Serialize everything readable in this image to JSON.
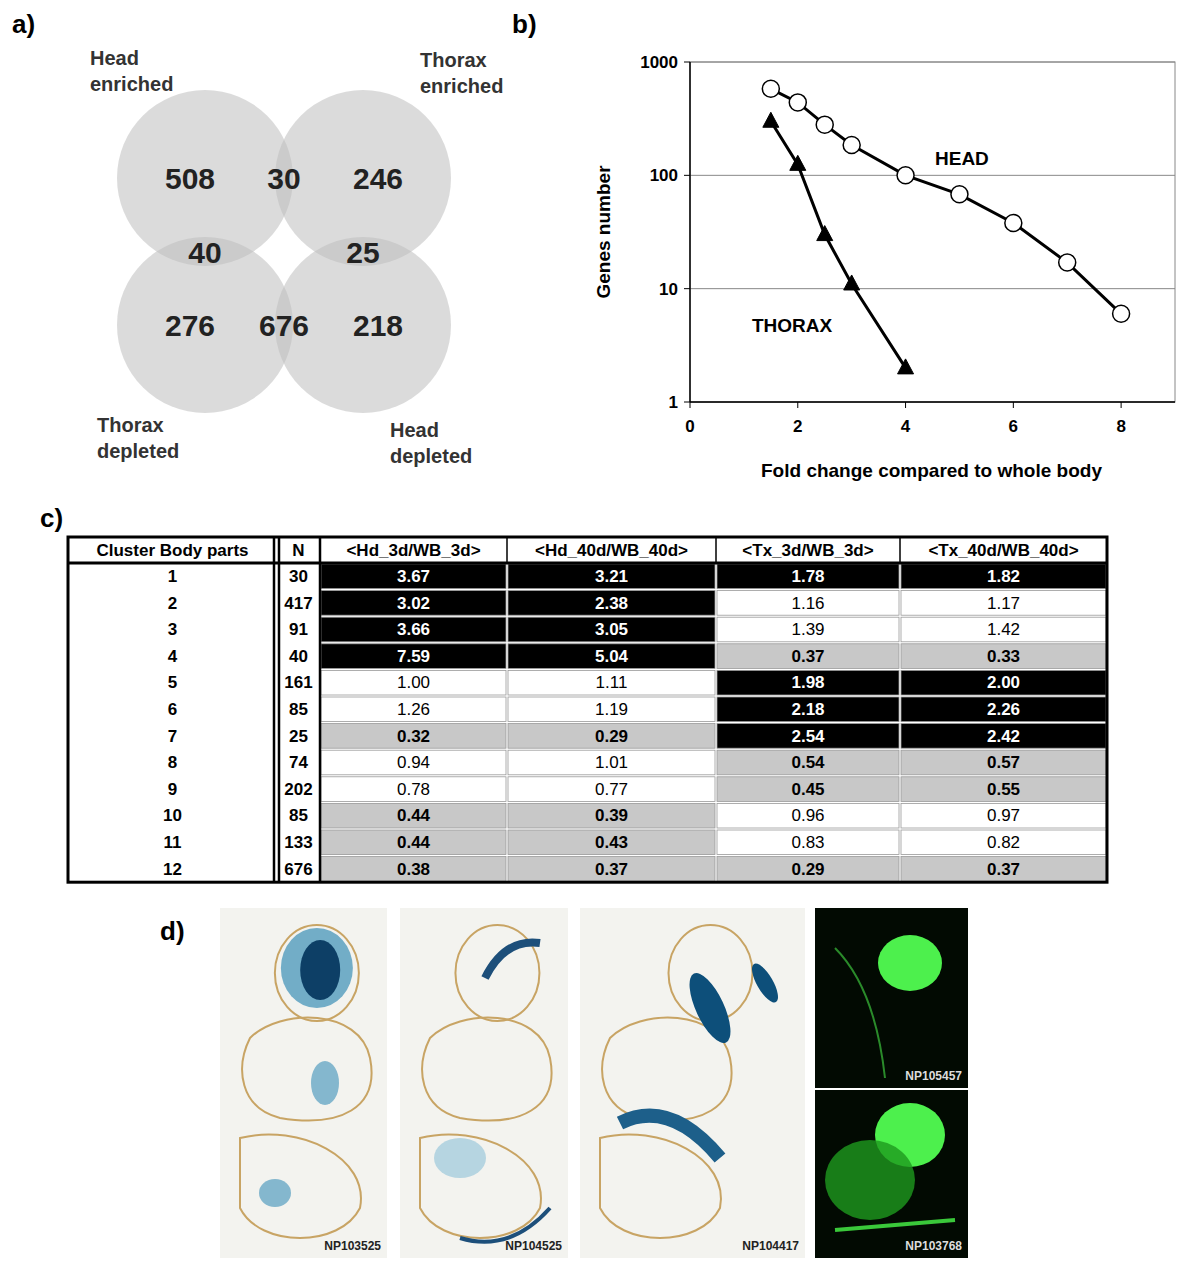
{
  "panel_labels": [
    "a)",
    "b)",
    "c)",
    "d)"
  ],
  "venn": {
    "sets": [
      {
        "label": [
          "Head",
          "enriched"
        ]
      },
      {
        "label": [
          "Thorax",
          "enriched"
        ]
      },
      {
        "label": [
          "Thorax",
          "depleted"
        ]
      },
      {
        "label": [
          "Head",
          "depleted"
        ]
      }
    ],
    "regions": [
      {
        "sets": [
          0
        ],
        "value": 508
      },
      {
        "sets": [
          0,
          1
        ],
        "value": 30
      },
      {
        "sets": [
          1
        ],
        "value": 246
      },
      {
        "sets": [
          0,
          2
        ],
        "value": 40
      },
      {
        "sets": [
          1,
          3
        ],
        "value": 25
      },
      {
        "sets": [
          2
        ],
        "value": 276
      },
      {
        "sets": [
          2,
          3
        ],
        "value": 676
      },
      {
        "sets": [
          3
        ],
        "value": 218
      }
    ]
  },
  "chart_data": {
    "type": "line",
    "x_label": "Fold change compared to whole body",
    "y_label": "Genes number",
    "log": "y",
    "grid": true,
    "xlim": [
      0,
      9
    ],
    "ylim": [
      1,
      1000
    ],
    "xticks": [
      0,
      2,
      4,
      6,
      8
    ],
    "yticks": [
      1,
      10,
      100,
      1000
    ],
    "series": [
      {
        "name": "HEAD",
        "color": "#000000",
        "marker": "circle",
        "x": [
          1.5,
          2,
          2.5,
          3,
          4,
          5,
          6,
          7,
          8
        ],
        "values": [
          580,
          440,
          280,
          185,
          100,
          68,
          38,
          17,
          6
        ]
      },
      {
        "name": "THORAX",
        "color": "#000000",
        "marker": "triangle",
        "x": [
          1.5,
          2,
          2.5,
          3,
          4
        ],
        "values": [
          300,
          125,
          30,
          11,
          2
        ]
      }
    ]
  },
  "table": {
    "header": [
      "Cluster Body parts",
      "N",
      "<Hd_3d/WB_3d>",
      "<Hd_40d/WB_40d>",
      "<Tx_3d/WB_3d>",
      "<Tx_40d/WB_40d>"
    ],
    "rows": [
      {
        "cells": [
          "1",
          "30",
          "3.67",
          "3.21",
          "1.78",
          "1.82"
        ],
        "colors": [
          "#000000",
          "#000000",
          "#000000",
          "#000000"
        ]
      },
      {
        "cells": [
          "2",
          "417",
          "3.02",
          "2.38",
          "1.16",
          "1.17"
        ],
        "colors": [
          "#000000",
          "#000000",
          "#ffffff",
          "#ffffff"
        ]
      },
      {
        "cells": [
          "3",
          "91",
          "3.66",
          "3.05",
          "1.39",
          "1.42"
        ],
        "colors": [
          "#000000",
          "#000000",
          "#ffffff",
          "#ffffff"
        ]
      },
      {
        "cells": [
          "4",
          "40",
          "7.59",
          "5.04",
          "0.37",
          "0.33"
        ],
        "colors": [
          "#000000",
          "#000000",
          "#c8c8c8",
          "#c8c8c8"
        ]
      },
      {
        "cells": [
          "5",
          "161",
          "1.00",
          "1.11",
          "1.98",
          "2.00"
        ],
        "colors": [
          "#ffffff",
          "#ffffff",
          "#000000",
          "#000000"
        ]
      },
      {
        "cells": [
          "6",
          "85",
          "1.26",
          "1.19",
          "2.18",
          "2.26"
        ],
        "colors": [
          "#ffffff",
          "#ffffff",
          "#000000",
          "#000000"
        ]
      },
      {
        "cells": [
          "7",
          "25",
          "0.32",
          "0.29",
          "2.54",
          "2.42"
        ],
        "colors": [
          "#c8c8c8",
          "#c8c8c8",
          "#000000",
          "#000000"
        ]
      },
      {
        "cells": [
          "8",
          "74",
          "0.94",
          "1.01",
          "0.54",
          "0.57"
        ],
        "colors": [
          "#ffffff",
          "#ffffff",
          "#c8c8c8",
          "#c8c8c8"
        ]
      },
      {
        "cells": [
          "9",
          "202",
          "0.78",
          "0.77",
          "0.45",
          "0.55"
        ],
        "colors": [
          "#ffffff",
          "#ffffff",
          "#c8c8c8",
          "#c8c8c8"
        ]
      },
      {
        "cells": [
          "10",
          "85",
          "0.44",
          "0.39",
          "0.96",
          "0.97"
        ],
        "colors": [
          "#c8c8c8",
          "#c8c8c8",
          "#ffffff",
          "#ffffff"
        ]
      },
      {
        "cells": [
          "11",
          "133",
          "0.44",
          "0.43",
          "0.83",
          "0.82"
        ],
        "colors": [
          "#c8c8c8",
          "#c8c8c8",
          "#ffffff",
          "#ffffff"
        ]
      },
      {
        "cells": [
          "12",
          "676",
          "0.38",
          "0.37",
          "0.29",
          "0.37"
        ],
        "colors": [
          "#c8c8c8",
          "#c8c8c8",
          "#c8c8c8",
          "#c8c8c8"
        ]
      }
    ]
  },
  "images": [
    {
      "caption": "NP103525"
    },
    {
      "caption": "NP104525"
    },
    {
      "caption": "NP104417"
    },
    {
      "caption": "NP105457"
    },
    {
      "caption": "NP103768"
    }
  ]
}
